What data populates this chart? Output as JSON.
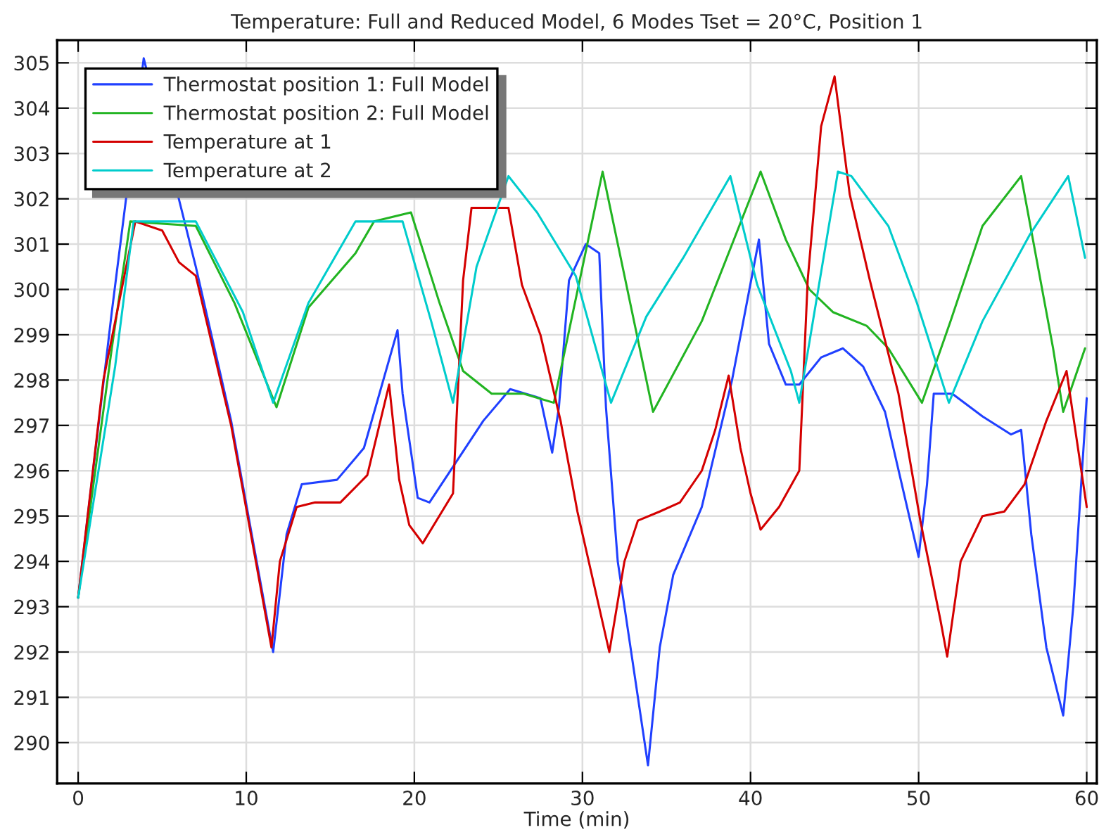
{
  "chart_data": {
    "type": "line",
    "title": "Temperature: Full and Reduced Model, 6 Modes Tset = 20°C, Position 1",
    "xlabel": "Time (min)",
    "xlim": [
      -1.25,
      60.6
    ],
    "xticks": [
      0,
      10,
      20,
      30,
      40,
      50,
      60
    ],
    "ylim": [
      289.1,
      305.5
    ],
    "yticks": [
      290,
      291,
      292,
      293,
      294,
      295,
      296,
      297,
      298,
      299,
      300,
      301,
      302,
      303,
      304,
      305
    ],
    "grid": true,
    "legend": "top left",
    "line_style": "solid",
    "marker": "none",
    "series": [
      {
        "name": "Thermostat position 1: Full Model",
        "color": "#2040ff",
        "x": [
          0,
          2.0,
          3.9,
          7.0,
          9.1,
          11.5,
          11.6,
          12.4,
          13.3,
          15.4,
          17.0,
          19.0,
          19.3,
          20.2,
          20.9,
          22.5,
          24.1,
          25.7,
          27.5,
          28.2,
          28.6,
          29.2,
          30.2,
          31.0,
          31.4,
          32.1,
          33.9,
          34.6,
          35.4,
          37.1,
          38.9,
          40.5,
          41.1,
          42.1,
          42.9,
          44.2,
          45.5,
          46.7,
          48.0,
          50.0,
          50.5,
          50.9,
          52.0,
          53.8,
          55.5,
          56.1,
          56.7,
          57.6,
          58.6,
          59.2,
          60.0
        ],
        "values": [
          293.2,
          299.5,
          305.1,
          300.5,
          297.1,
          292.2,
          292.0,
          294.6,
          295.7,
          295.8,
          296.5,
          299.1,
          297.7,
          295.4,
          295.3,
          296.2,
          297.1,
          297.8,
          297.6,
          296.4,
          297.4,
          300.2,
          301.0,
          300.8,
          297.4,
          294.0,
          289.5,
          292.1,
          293.7,
          295.2,
          298.0,
          301.1,
          298.8,
          297.9,
          297.9,
          298.5,
          298.7,
          298.3,
          297.3,
          294.1,
          295.7,
          297.7,
          297.7,
          297.2,
          296.8,
          296.9,
          294.6,
          292.1,
          290.6,
          293.0,
          297.6
        ]
      },
      {
        "name": "Thermostat position 2: Full Model",
        "color": "#22b422",
        "x": [
          0,
          2.0,
          3.1,
          7.0,
          9.3,
          11.8,
          13.7,
          16.5,
          17.6,
          19.8,
          21.5,
          22.9,
          24.6,
          26.5,
          28.3,
          31.2,
          34.2,
          37.1,
          38.8,
          40.6,
          42.1,
          43.5,
          44.9,
          46.9,
          48.2,
          50.2,
          51.9,
          53.8,
          56.1,
          58.0,
          58.6,
          59.9
        ],
        "values": [
          293.2,
          298.7,
          301.5,
          301.4,
          299.7,
          297.4,
          299.6,
          300.8,
          301.5,
          301.7,
          299.7,
          298.2,
          297.7,
          297.7,
          297.5,
          302.6,
          297.3,
          299.3,
          300.9,
          302.6,
          301.1,
          300.0,
          299.5,
          299.2,
          298.7,
          297.5,
          299.3,
          301.4,
          302.5,
          298.7,
          297.3,
          298.7
        ]
      },
      {
        "name": "Temperature at 1",
        "color": "#d40000",
        "x": [
          0,
          1.5,
          3.4,
          5.0,
          6.0,
          7.0,
          9.1,
          11.5,
          12.0,
          13.0,
          14.1,
          15.6,
          17.2,
          18.5,
          19.1,
          19.7,
          20.5,
          22.3,
          22.9,
          23.4,
          25.6,
          26.4,
          27.5,
          28.7,
          29.7,
          31.6,
          32.5,
          33.3,
          34.6,
          35.8,
          37.1,
          37.9,
          38.7,
          39.4,
          40.0,
          40.6,
          41.7,
          42.9,
          43.4,
          44.2,
          45.0,
          45.9,
          47.1,
          48.8,
          50.1,
          51.3,
          51.7,
          52.5,
          53.8,
          55.1,
          56.3,
          57.6,
          58.8,
          59.2,
          60.0
        ],
        "values": [
          293.2,
          298.0,
          301.5,
          301.3,
          300.6,
          300.3,
          297.0,
          292.1,
          294.0,
          295.2,
          295.3,
          295.3,
          295.9,
          297.9,
          295.8,
          294.8,
          294.4,
          295.5,
          300.2,
          301.8,
          301.8,
          300.1,
          299.0,
          297.1,
          295.1,
          292.0,
          294.0,
          294.9,
          295.1,
          295.3,
          296.0,
          296.9,
          298.1,
          296.5,
          295.5,
          294.7,
          295.2,
          296.0,
          300.2,
          303.6,
          304.7,
          302.1,
          300.2,
          297.7,
          294.9,
          292.7,
          291.9,
          294.0,
          295.0,
          295.1,
          295.7,
          297.1,
          298.2,
          297.2,
          295.2
        ]
      },
      {
        "name": "Temperature at 2",
        "color": "#00cccc",
        "x": [
          0,
          2.2,
          3.3,
          7.0,
          9.8,
          11.6,
          13.7,
          16.5,
          19.3,
          21.0,
          22.3,
          23.7,
          25.6,
          27.3,
          29.6,
          31.7,
          33.8,
          36.0,
          38.8,
          40.4,
          42.4,
          42.9,
          45.2,
          46.0,
          48.2,
          49.9,
          51.8,
          53.8,
          56.6,
          58.9,
          59.9
        ],
        "values": [
          293.2,
          298.3,
          301.5,
          301.5,
          299.5,
          297.5,
          299.7,
          301.5,
          301.5,
          299.3,
          297.5,
          300.5,
          302.5,
          301.7,
          300.3,
          297.5,
          299.4,
          300.7,
          302.5,
          300.1,
          298.2,
          297.5,
          302.6,
          302.5,
          301.4,
          299.7,
          297.5,
          299.3,
          301.2,
          302.5,
          300.7
        ]
      }
    ]
  }
}
